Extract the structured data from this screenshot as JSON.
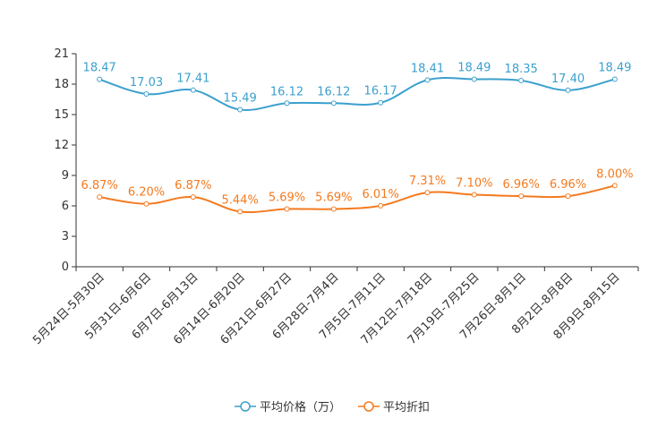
{
  "chart_data": {
    "type": "line",
    "categories": [
      "5月24日-5月30日",
      "5月31日-6月6日",
      "6月7日-6月13日",
      "6月14日-6月20日",
      "6月21日-6月27日",
      "6月28日-7月4日",
      "7月5日-7月11日",
      "7月12日-7月18日",
      "7月19日-7月25日",
      "7月26日-8月1日",
      "8月2日-8月8日",
      "8月9日-8月15日"
    ],
    "ylim": [
      0,
      21
    ],
    "yticks": [
      "0",
      "3",
      "6",
      "9",
      "12",
      "15",
      "18",
      "21"
    ],
    "series": [
      {
        "name": "平均价格（万）",
        "color": "#3ba0ce",
        "values": [
          18.47,
          17.03,
          17.41,
          15.49,
          16.12,
          16.12,
          16.17,
          18.41,
          18.49,
          18.35,
          17.4,
          18.49
        ],
        "labels": [
          "18.47",
          "17.03",
          "17.41",
          "15.49",
          "16.12",
          "16.12",
          "16.17",
          "18.41",
          "18.49",
          "18.35",
          "17.40",
          "18.49"
        ]
      },
      {
        "name": "平均折扣",
        "color": "#f47a1f",
        "values": [
          6.87,
          6.2,
          6.87,
          5.44,
          5.69,
          5.69,
          6.01,
          7.31,
          7.1,
          6.96,
          6.96,
          8.0
        ],
        "labels": [
          "6.87%",
          "6.20%",
          "6.87%",
          "5.44%",
          "5.69%",
          "5.69%",
          "6.01%",
          "7.31%",
          "7.10%",
          "6.96%",
          "6.96%",
          "8.00%"
        ]
      }
    ],
    "legend_position": "bottom-center"
  }
}
